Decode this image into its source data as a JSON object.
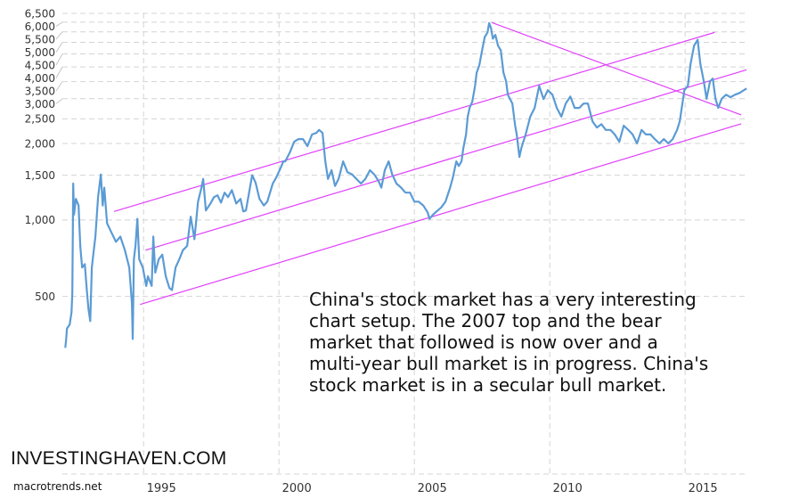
{
  "chart_data": {
    "type": "line",
    "title": "",
    "xlabel": "",
    "ylabel": "",
    "yscale": "log",
    "xlim": [
      1992.0,
      2017.33
    ],
    "ylim": [
      100,
      6500
    ],
    "grid": true,
    "yticks": [
      500,
      1000,
      1500,
      2000,
      2500,
      3000,
      3500,
      4000,
      4500,
      5000,
      5500,
      6000,
      6500
    ],
    "ytick_labels": [
      "500",
      "1,000",
      "1,500",
      "2,000",
      "2,500",
      "3,000",
      "3,500",
      "4,000",
      "4,500",
      "5,000",
      "5,500",
      "6,000",
      "6,500"
    ],
    "xticks": [
      1995,
      2000,
      2005,
      2010,
      2015
    ],
    "xtick_labels": [
      "1995",
      "2000",
      "2005",
      "2010",
      "2015"
    ],
    "series": [
      {
        "name": "China stock market index",
        "color": "#5b9bd5",
        "x": [
          1992.11,
          1992.14,
          1992.17,
          1992.27,
          1992.34,
          1992.37,
          1992.4,
          1992.43,
          1992.5,
          1992.6,
          1992.66,
          1992.73,
          1992.83,
          1992.89,
          1992.96,
          1993.03,
          1993.09,
          1993.16,
          1993.22,
          1993.32,
          1993.42,
          1993.49,
          1993.55,
          1993.65,
          1993.82,
          1993.98,
          1994.14,
          1994.31,
          1994.47,
          1994.57,
          1994.6,
          1994.64,
          1994.7,
          1994.77,
          1994.84,
          1994.97,
          1995.1,
          1995.16,
          1995.3,
          1995.36,
          1995.43,
          1995.56,
          1995.69,
          1995.82,
          1995.95,
          1996.05,
          1996.18,
          1996.32,
          1996.45,
          1996.61,
          1996.74,
          1996.88,
          1997.01,
          1997.14,
          1997.2,
          1997.3,
          1997.47,
          1997.6,
          1997.73,
          1997.86,
          1997.99,
          1998.12,
          1998.26,
          1998.42,
          1998.58,
          1998.68,
          1998.78,
          1998.88,
          1999.01,
          1999.14,
          1999.28,
          1999.44,
          1999.57,
          1999.77,
          1999.9,
          2000.07,
          2000.16,
          2000.23,
          2000.4,
          2000.56,
          2000.72,
          2000.89,
          2001.05,
          2001.22,
          2001.38,
          2001.48,
          2001.61,
          2001.71,
          2001.81,
          2001.94,
          2002.07,
          2002.2,
          2002.37,
          2002.53,
          2002.7,
          2002.86,
          2003.03,
          2003.19,
          2003.36,
          2003.52,
          2003.68,
          2003.78,
          2003.91,
          2004.05,
          2004.18,
          2004.34,
          2004.51,
          2004.67,
          2004.84,
          2005.0,
          2005.16,
          2005.33,
          2005.49,
          2005.56,
          2005.69,
          2005.82,
          2005.99,
          2006.15,
          2006.32,
          2006.41,
          2006.55,
          2006.64,
          2006.74,
          2006.81,
          2006.91,
          2006.97,
          2007.04,
          2007.14,
          2007.24,
          2007.3,
          2007.4,
          2007.5,
          2007.6,
          2007.7,
          2007.76,
          2007.83,
          2007.9,
          2007.99,
          2008.09,
          2008.19,
          2008.29,
          2008.39,
          2008.45,
          2008.62,
          2008.72,
          2008.78,
          2008.88,
          2008.95,
          2009.11,
          2009.28,
          2009.44,
          2009.61,
          2009.77,
          2009.93,
          2010.1,
          2010.26,
          2010.43,
          2010.59,
          2010.76,
          2010.92,
          2011.09,
          2011.25,
          2011.41,
          2011.58,
          2011.74,
          2011.91,
          2012.07,
          2012.24,
          2012.4,
          2012.57,
          2012.73,
          2012.9,
          2013.06,
          2013.22,
          2013.39,
          2013.55,
          2013.72,
          2013.88,
          2014.05,
          2014.21,
          2014.38,
          2014.54,
          2014.7,
          2014.8,
          2014.97,
          2015.1,
          2015.2,
          2015.33,
          2015.46,
          2015.56,
          2015.69,
          2015.79,
          2015.92,
          2016.02,
          2016.12,
          2016.22,
          2016.35,
          2016.51,
          2016.68,
          2016.84,
          2017.01,
          2017.17,
          2017.27
        ],
        "values": [
          314,
          340,
          374,
          387,
          433,
          517,
          1390,
          1049,
          1210,
          1140,
          790,
          650,
          670,
          550,
          450,
          400,
          650,
          760,
          860,
          1230,
          1510,
          1140,
          1340,
          970,
          890,
          820,
          860,
          760,
          650,
          470,
          340,
          700,
          790,
          1010,
          700,
          650,
          550,
          600,
          550,
          860,
          620,
          700,
          730,
          600,
          540,
          530,
          650,
          700,
          760,
          790,
          1030,
          840,
          1180,
          1340,
          1450,
          1090,
          1160,
          1230,
          1250,
          1170,
          1280,
          1230,
          1310,
          1160,
          1210,
          1080,
          1090,
          1250,
          1500,
          1400,
          1210,
          1140,
          1180,
          1390,
          1470,
          1610,
          1700,
          1700,
          1840,
          2030,
          2080,
          2080,
          1950,
          2170,
          2200,
          2260,
          2200,
          1700,
          1450,
          1570,
          1360,
          1450,
          1700,
          1540,
          1510,
          1450,
          1390,
          1450,
          1570,
          1510,
          1420,
          1340,
          1570,
          1700,
          1510,
          1390,
          1340,
          1280,
          1280,
          1180,
          1180,
          1140,
          1070,
          1010,
          1050,
          1080,
          1120,
          1180,
          1340,
          1450,
          1700,
          1630,
          1700,
          1920,
          2170,
          2550,
          2760,
          2920,
          3370,
          3800,
          4060,
          4650,
          5250,
          5470,
          5950,
          5700,
          5170,
          5350,
          4850,
          4650,
          3800,
          3510,
          3110,
          2870,
          2350,
          2170,
          1770,
          1920,
          2170,
          2550,
          2760,
          3370,
          2990,
          3240,
          3110,
          2760,
          2550,
          2870,
          3060,
          2760,
          2760,
          2870,
          2870,
          2440,
          2310,
          2380,
          2260,
          2260,
          2170,
          2030,
          2350,
          2260,
          2170,
          2000,
          2260,
          2170,
          2170,
          2080,
          2000,
          2080,
          2000,
          2080,
          2260,
          2440,
          3240,
          3370,
          4120,
          4850,
          5120,
          4120,
          3510,
          3000,
          3510,
          3600,
          3000,
          2760,
          3000,
          3110,
          3040,
          3110,
          3160,
          3240,
          3290
        ]
      }
    ],
    "trendlines": [
      {
        "name": "channel-upper",
        "color": "#e040fb",
        "x": [
          1993.91,
          2016.09
        ],
        "values": [
          1080,
          5470
        ]
      },
      {
        "name": "channel-middle",
        "color": "#e040fb",
        "x": [
          1995.07,
          2017.27
        ],
        "values": [
          760,
          3900
        ]
      },
      {
        "name": "channel-lower",
        "color": "#e040fb",
        "x": [
          1994.87,
          2017.07
        ],
        "values": [
          465,
          2390
        ]
      },
      {
        "name": "bear-market-downtrend",
        "color": "#e040fb",
        "x": [
          2007.86,
          2017.07
        ],
        "values": [
          5980,
          2590
        ]
      }
    ],
    "annotation": [
      "China's stock market has a very interesting",
      "chart setup. The 2007 top and the bear",
      "market that followed is now over and a",
      "multi-year bull market is in progress. China's",
      "stock market is in a secular bull market."
    ]
  },
  "watermark": "INVESTINGHAVEN.COM",
  "source": "macrotrends.net"
}
